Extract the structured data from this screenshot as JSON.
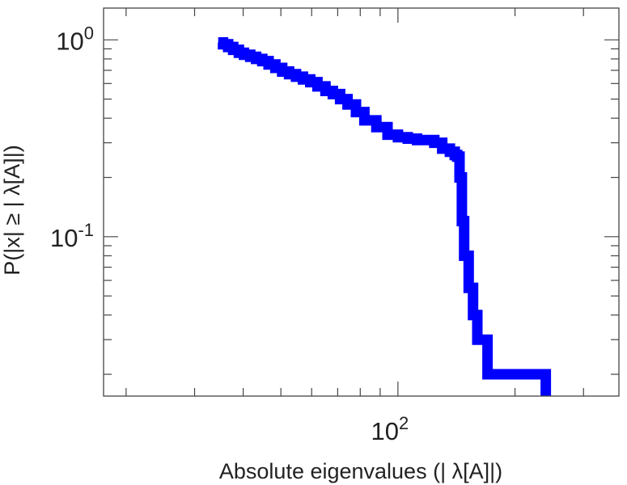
{
  "chart_data": {
    "type": "line",
    "title": "",
    "xlabel": "Absolute eigenvalues (|      λ[A]|)",
    "ylabel": "P(|x|  ≥ | λ[A]|)",
    "x_scale": "log",
    "y_scale": "log",
    "xlim": [
      17.5,
      370
    ],
    "ylim": [
      0.0155,
      1.45
    ],
    "grid": false,
    "legend": "none",
    "x_ticks": [
      {
        "base": "10",
        "exp": "2",
        "value": 100
      }
    ],
    "y_ticks": [
      {
        "base": "10",
        "exp": "0",
        "value": 1
      },
      {
        "base": "10",
        "exp": "-1",
        "value": 0.1
      }
    ],
    "series": [
      {
        "color": "#0000ff",
        "x": [
          34.5,
          35.5,
          36.6,
          37.7,
          39,
          40.2,
          41.7,
          43.2,
          44.8,
          46.5,
          48.4,
          50.4,
          52.5,
          54.7,
          57,
          59.5,
          62.1,
          65.1,
          68,
          71,
          74.2,
          78,
          82,
          88,
          94,
          100,
          106,
          112,
          118,
          124,
          130,
          136,
          140,
          142,
          144,
          146,
          148,
          152,
          156,
          160,
          170,
          190,
          210,
          235,
          240,
          240
        ],
        "y": [
          0.97,
          0.95,
          0.92,
          0.89,
          0.86,
          0.84,
          0.82,
          0.8,
          0.78,
          0.75,
          0.72,
          0.69,
          0.67,
          0.65,
          0.63,
          0.61,
          0.58,
          0.55,
          0.53,
          0.5,
          0.47,
          0.43,
          0.39,
          0.36,
          0.33,
          0.32,
          0.315,
          0.31,
          0.31,
          0.3,
          0.28,
          0.27,
          0.26,
          0.255,
          0.2,
          0.12,
          0.08,
          0.055,
          0.04,
          0.03,
          0.02,
          0.02,
          0.02,
          0.02,
          0.018,
          0.0155
        ]
      }
    ]
  }
}
